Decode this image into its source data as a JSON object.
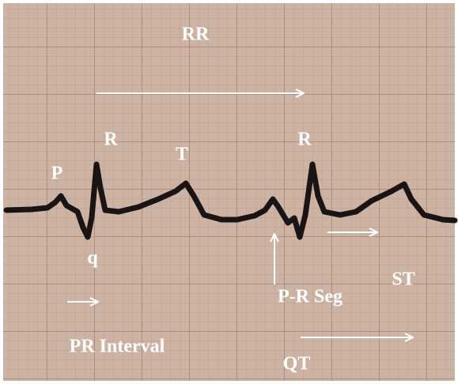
{
  "labels": [
    "RR",
    "P",
    "R",
    "T",
    "R",
    "q",
    "P-R Seg",
    "ST",
    "PR Interval",
    "QT"
  ]
}
